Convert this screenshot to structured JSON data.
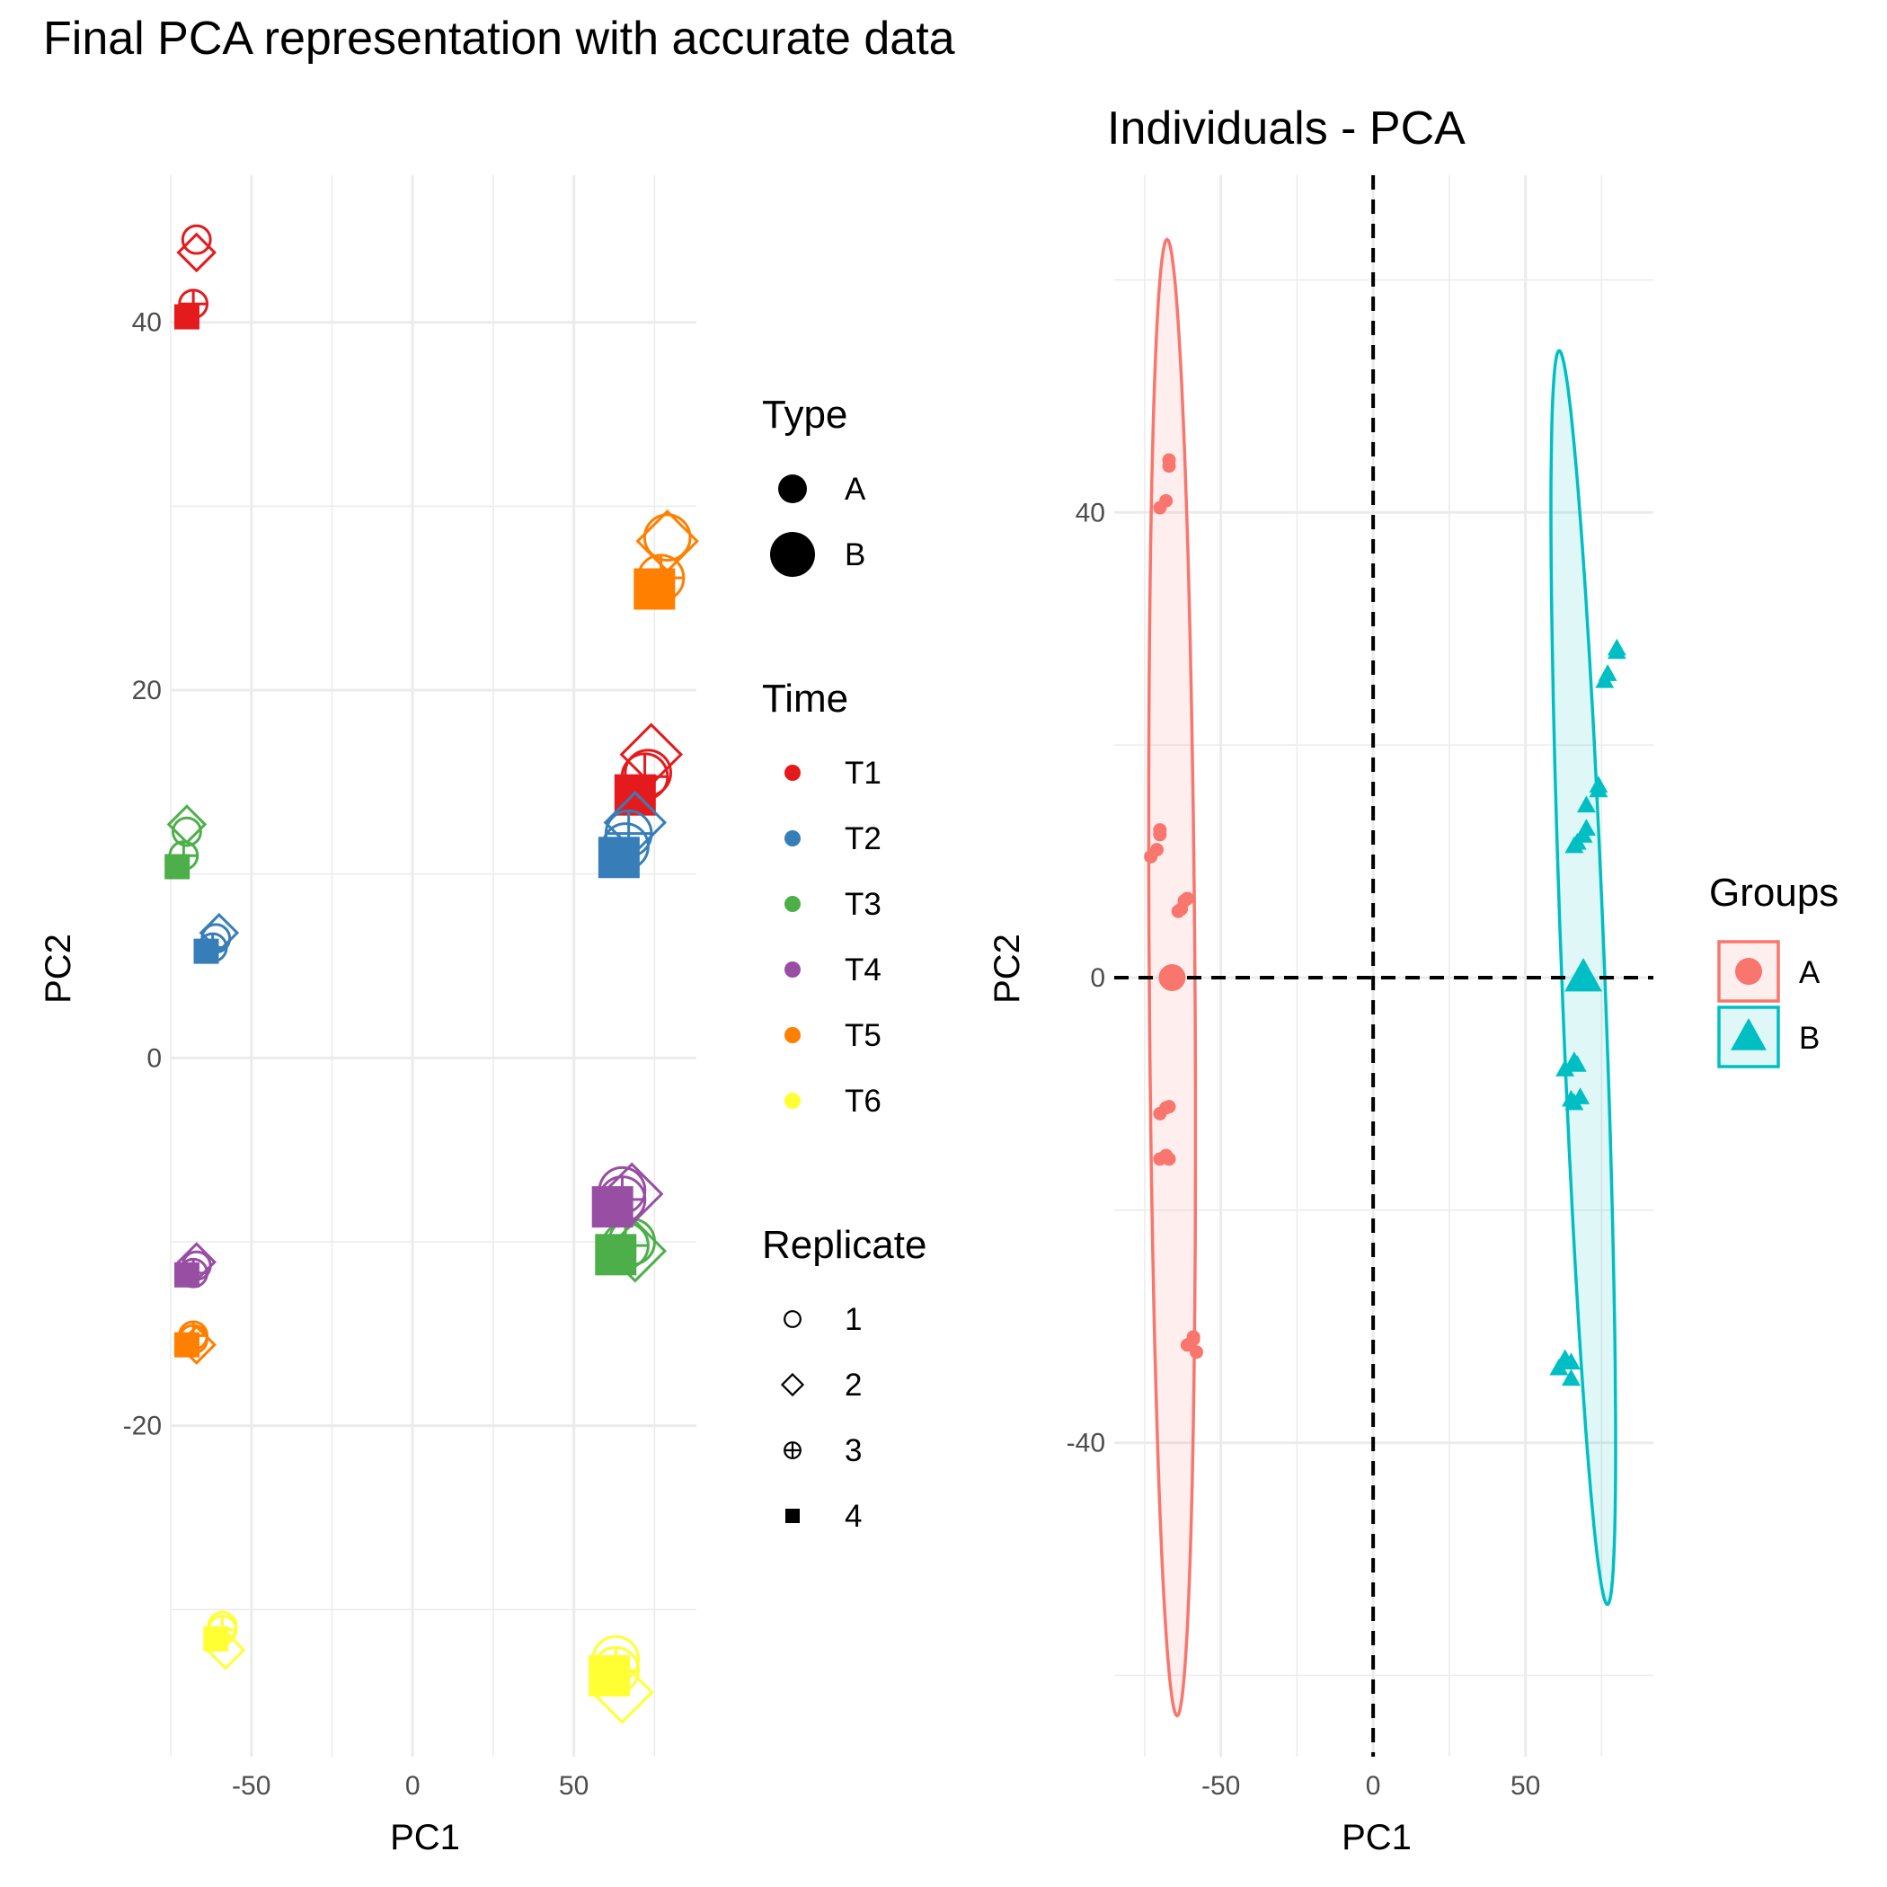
{
  "figure_title": "Final PCA representation with accurate data",
  "chart_data": [
    {
      "type": "scatter",
      "title": "",
      "xlabel": "PC1",
      "ylabel": "PC2",
      "xlim": [
        -75,
        88
      ],
      "ylim": [
        -38,
        48
      ],
      "x_ticks": [
        -50,
        0,
        50
      ],
      "y_ticks": [
        -20,
        0,
        20,
        40
      ],
      "x_tick_labels": [
        "-50",
        "0",
        "50"
      ],
      "y_tick_labels": [
        "-20",
        "0",
        "20",
        "40"
      ],
      "grid": true,
      "legends": [
        {
          "title": "Type",
          "entries": [
            {
              "label": "A",
              "size": "small"
            },
            {
              "label": "B",
              "size": "large"
            }
          ]
        },
        {
          "title": "Time",
          "entries": [
            {
              "label": "T1",
              "color": "#E41A1C"
            },
            {
              "label": "T2",
              "color": "#377EB8"
            },
            {
              "label": "T3",
              "color": "#4DAF4A"
            },
            {
              "label": "T4",
              "color": "#984EA3"
            },
            {
              "label": "T5",
              "color": "#FF7F00"
            },
            {
              "label": "T6",
              "color": "#FFFF33"
            }
          ]
        },
        {
          "title": "Replicate",
          "entries": [
            {
              "label": "1",
              "shape": "circle-open"
            },
            {
              "label": "2",
              "shape": "diamond-open"
            },
            {
              "label": "3",
              "shape": "circle-plus"
            },
            {
              "label": "4",
              "shape": "square-filled"
            }
          ]
        }
      ],
      "points": [
        {
          "x": -67,
          "y": 44.5,
          "time": "T1",
          "replicate": "1",
          "type": "A"
        },
        {
          "x": -67,
          "y": 43.8,
          "time": "T1",
          "replicate": "2",
          "type": "A"
        },
        {
          "x": -68,
          "y": 41,
          "time": "T1",
          "replicate": "3",
          "type": "A"
        },
        {
          "x": -70,
          "y": 40.3,
          "time": "T1",
          "replicate": "4",
          "type": "A"
        },
        {
          "x": 73,
          "y": 15.5,
          "time": "T1",
          "replicate": "1",
          "type": "B"
        },
        {
          "x": 74,
          "y": 16.5,
          "time": "T1",
          "replicate": "2",
          "type": "B"
        },
        {
          "x": 72,
          "y": 15.3,
          "time": "T1",
          "replicate": "3",
          "type": "B"
        },
        {
          "x": 69,
          "y": 14.3,
          "time": "T1",
          "replicate": "4",
          "type": "B"
        },
        {
          "x": -61,
          "y": 6.5,
          "time": "T2",
          "replicate": "1",
          "type": "A"
        },
        {
          "x": -60,
          "y": 6.8,
          "time": "T2",
          "replicate": "2",
          "type": "A"
        },
        {
          "x": -62,
          "y": 6,
          "time": "T2",
          "replicate": "3",
          "type": "A"
        },
        {
          "x": -64,
          "y": 5.8,
          "time": "T2",
          "replicate": "4",
          "type": "A"
        },
        {
          "x": 66,
          "y": 11.5,
          "time": "T2",
          "replicate": "1",
          "type": "B"
        },
        {
          "x": 69,
          "y": 12.8,
          "time": "T2",
          "replicate": "2",
          "type": "B"
        },
        {
          "x": 67,
          "y": 12.2,
          "time": "T2",
          "replicate": "3",
          "type": "B"
        },
        {
          "x": 64,
          "y": 10.9,
          "time": "T2",
          "replicate": "4",
          "type": "B"
        },
        {
          "x": -70,
          "y": 12.3,
          "time": "T3",
          "replicate": "1",
          "type": "A"
        },
        {
          "x": -70,
          "y": 12.7,
          "time": "T3",
          "replicate": "2",
          "type": "A"
        },
        {
          "x": -71,
          "y": 11,
          "time": "T3",
          "replicate": "3",
          "type": "A"
        },
        {
          "x": -73,
          "y": 10.4,
          "time": "T3",
          "replicate": "4",
          "type": "A"
        },
        {
          "x": 68,
          "y": -10,
          "time": "T3",
          "replicate": "1",
          "type": "B"
        },
        {
          "x": 69,
          "y": -10.5,
          "time": "T3",
          "replicate": "2",
          "type": "B"
        },
        {
          "x": 66,
          "y": -10.2,
          "time": "T3",
          "replicate": "3",
          "type": "B"
        },
        {
          "x": 63,
          "y": -10.7,
          "time": "T3",
          "replicate": "4",
          "type": "B"
        },
        {
          "x": -67,
          "y": -11.3,
          "time": "T4",
          "replicate": "1",
          "type": "A"
        },
        {
          "x": -67,
          "y": -11.1,
          "time": "T4",
          "replicate": "2",
          "type": "A"
        },
        {
          "x": -68,
          "y": -11.7,
          "time": "T4",
          "replicate": "3",
          "type": "A"
        },
        {
          "x": -70,
          "y": -11.8,
          "time": "T4",
          "replicate": "4",
          "type": "A"
        },
        {
          "x": 65,
          "y": -7.2,
          "time": "T4",
          "replicate": "1",
          "type": "B"
        },
        {
          "x": 68,
          "y": -7.4,
          "time": "T4",
          "replicate": "2",
          "type": "B"
        },
        {
          "x": 65,
          "y": -7.7,
          "time": "T4",
          "replicate": "3",
          "type": "B"
        },
        {
          "x": 62,
          "y": -8.1,
          "time": "T4",
          "replicate": "4",
          "type": "B"
        },
        {
          "x": -68,
          "y": -15.3,
          "time": "T5",
          "replicate": "1",
          "type": "A"
        },
        {
          "x": -67,
          "y": -15.6,
          "time": "T5",
          "replicate": "2",
          "type": "A"
        },
        {
          "x": -68,
          "y": -15.1,
          "time": "T5",
          "replicate": "3",
          "type": "A"
        },
        {
          "x": -70,
          "y": -15.6,
          "time": "T5",
          "replicate": "4",
          "type": "A"
        },
        {
          "x": 79,
          "y": 28.3,
          "time": "T5",
          "replicate": "1",
          "type": "B"
        },
        {
          "x": 79,
          "y": 28.1,
          "time": "T5",
          "replicate": "2",
          "type": "B"
        },
        {
          "x": 77,
          "y": 26.1,
          "time": "T5",
          "replicate": "3",
          "type": "B"
        },
        {
          "x": 75,
          "y": 25.5,
          "time": "T5",
          "replicate": "4",
          "type": "B"
        },
        {
          "x": -59,
          "y": -30.9,
          "time": "T6",
          "replicate": "1",
          "type": "A"
        },
        {
          "x": -58,
          "y": -32.2,
          "time": "T6",
          "replicate": "2",
          "type": "A"
        },
        {
          "x": -59,
          "y": -31.1,
          "time": "T6",
          "replicate": "3",
          "type": "A"
        },
        {
          "x": -61,
          "y": -31.6,
          "time": "T6",
          "replicate": "4",
          "type": "A"
        },
        {
          "x": 63,
          "y": -32.7,
          "time": "T6",
          "replicate": "1",
          "type": "B"
        },
        {
          "x": 65,
          "y": -34.5,
          "time": "T6",
          "replicate": "2",
          "type": "B"
        },
        {
          "x": 63,
          "y": -33.3,
          "time": "T6",
          "replicate": "3",
          "type": "B"
        },
        {
          "x": 61,
          "y": -33.6,
          "time": "T6",
          "replicate": "4",
          "type": "B"
        }
      ]
    },
    {
      "type": "scatter",
      "title": "Individuals - PCA",
      "xlabel": "PC1",
      "ylabel": "PC2",
      "xlim": [
        -85,
        92
      ],
      "ylim": [
        -67,
        69
      ],
      "x_ticks": [
        -50,
        0,
        50
      ],
      "y_ticks": [
        -40,
        0,
        40
      ],
      "x_tick_labels": [
        "-50",
        "0",
        "50"
      ],
      "y_tick_labels": [
        "-40",
        "0",
        "40"
      ],
      "grid": true,
      "reference_lines": {
        "x": 0,
        "y": 0,
        "style": "dashed"
      },
      "legend": {
        "title": "Groups",
        "placement": "right"
      },
      "series": [
        {
          "name": "A",
          "color": "#F8766D",
          "shape": "circle",
          "mean": [
            -66,
            0
          ],
          "ellipse": {
            "center": [
              -66,
              0
            ],
            "semi_major": 63.5,
            "semi_minor": 7.5,
            "angle_deg": -88.5
          },
          "points": [
            [
              -67,
              44.5
            ],
            [
              -67,
              44
            ],
            [
              -68,
              41
            ],
            [
              -70,
              40.4
            ],
            [
              -70,
              12.7
            ],
            [
              -70,
              12.3
            ],
            [
              -71,
              11
            ],
            [
              -73,
              10.4
            ],
            [
              -62,
              6.6
            ],
            [
              -61,
              6.8
            ],
            [
              -63,
              5.9
            ],
            [
              -64,
              5.7
            ],
            [
              -68,
              -11.2
            ],
            [
              -67,
              -11.1
            ],
            [
              -70,
              -11.7
            ],
            [
              -68,
              -15.3
            ],
            [
              -67,
              -15.6
            ],
            [
              -70,
              -15.6
            ],
            [
              -59,
              -30.9
            ],
            [
              -58,
              -32.2
            ],
            [
              -61,
              -31.6
            ],
            [
              -59,
              -31.1
            ]
          ]
        },
        {
          "name": "B",
          "color": "#00BFC4",
          "shape": "triangle",
          "mean": [
            69,
            0
          ],
          "ellipse": {
            "center": [
              69,
              0
            ],
            "semi_major": 54.5,
            "semi_minor": 7,
            "angle_deg": -81.5
          },
          "points": [
            [
              80,
              28.3
            ],
            [
              80,
              28
            ],
            [
              77,
              26.1
            ],
            [
              76,
              25.5
            ],
            [
              74,
              16.5
            ],
            [
              74,
              16.1
            ],
            [
              70,
              14.8
            ],
            [
              70,
              12.8
            ],
            [
              69,
              12.2
            ],
            [
              66,
              11.3
            ],
            [
              67,
              11.6
            ],
            [
              66,
              -7.2
            ],
            [
              67,
              -7.5
            ],
            [
              63,
              -7.9
            ],
            [
              65,
              -10.5
            ],
            [
              68,
              -10.3
            ],
            [
              66,
              -10.8
            ],
            [
              63,
              -32.8
            ],
            [
              65,
              -33.1
            ],
            [
              65,
              -34.5
            ],
            [
              61,
              -33.6
            ]
          ]
        }
      ]
    }
  ]
}
